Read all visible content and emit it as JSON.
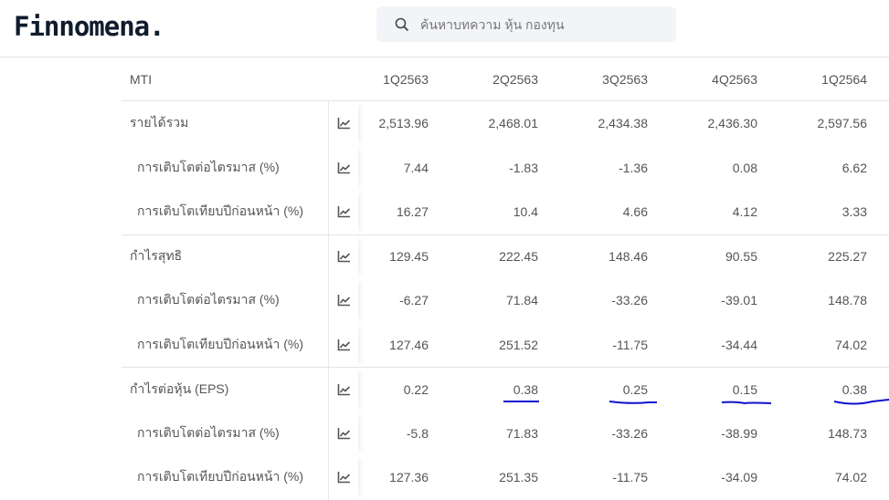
{
  "header": {
    "logo": "Finnomena.",
    "search_placeholder": "ค้นหาบทความ หุ้น กองทุน"
  },
  "table": {
    "symbol": "MTI",
    "periods": [
      "1Q2563",
      "2Q2563",
      "3Q2563",
      "4Q2563",
      "1Q2564"
    ],
    "rows": [
      {
        "label": "รายได้รวม",
        "type": "main",
        "values": [
          "2,513.96",
          "2,468.01",
          "2,434.38",
          "2,436.30",
          "2,597.56"
        ]
      },
      {
        "label": "การเติบโตต่อไตรมาส (%)",
        "type": "sub",
        "values": [
          "7.44",
          "-1.83",
          "-1.36",
          "0.08",
          "6.62"
        ]
      },
      {
        "label": "การเติบโตเทียบปีก่อนหน้า (%)",
        "type": "sub",
        "values": [
          "16.27",
          "10.4",
          "4.66",
          "4.12",
          "3.33"
        ]
      },
      {
        "label": "กำไรสุทธิ",
        "type": "main",
        "values": [
          "129.45",
          "222.45",
          "148.46",
          "90.55",
          "225.27"
        ]
      },
      {
        "label": "การเติบโตต่อไตรมาส (%)",
        "type": "sub",
        "values": [
          "-6.27",
          "71.84",
          "-33.26",
          "-39.01",
          "148.78"
        ]
      },
      {
        "label": "การเติบโตเทียบปีก่อนหน้า (%)",
        "type": "sub",
        "values": [
          "127.46",
          "251.52",
          "-11.75",
          "-34.44",
          "74.02"
        ]
      },
      {
        "label": "กำไรต่อหุ้น (EPS)",
        "type": "main",
        "values": [
          "0.22",
          "0.38",
          "0.25",
          "0.15",
          "0.38"
        ]
      },
      {
        "label": "การเติบโตต่อไตรมาส (%)",
        "type": "sub",
        "values": [
          "-5.8",
          "71.83",
          "-33.26",
          "-38.99",
          "148.73"
        ]
      },
      {
        "label": "การเติบโตเทียบปีก่อนหน้า (%)",
        "type": "sub",
        "values": [
          "127.36",
          "251.35",
          "-11.75",
          "-34.09",
          "74.02"
        ]
      }
    ]
  },
  "colors": {
    "annotation": "#1010d0",
    "logo": "#0f1c2b"
  },
  "icons": {
    "row_chart": "line-chart-icon",
    "search": "search-icon"
  }
}
